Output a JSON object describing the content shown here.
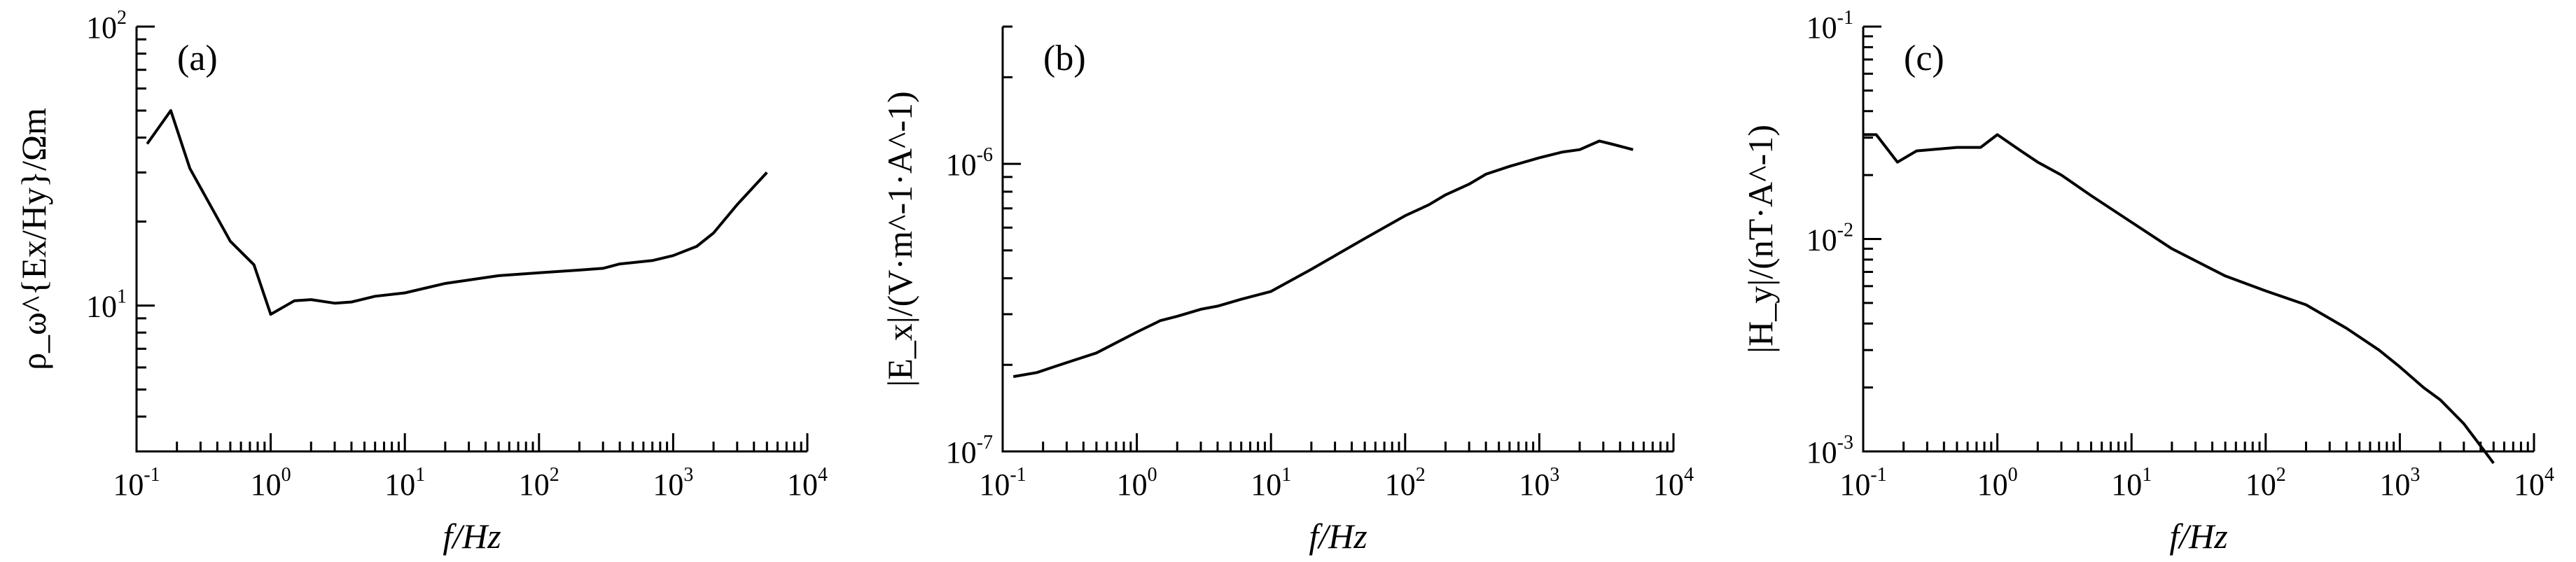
{
  "chart_data": [
    {
      "type": "line",
      "panel_label": "(a)",
      "xscale": "log",
      "yscale": "log",
      "xlim": [
        0.1,
        10000
      ],
      "ylim": [
        3,
        100
      ],
      "xlabel": "f/Hz",
      "ylabel": "ρ_ω^{Ex/Hy}/Ωm",
      "xticks": [
        "10^-1",
        "10^0",
        "10^1",
        "10^2",
        "10^3",
        "10^4"
      ],
      "yticks": [
        "10^1",
        "10^2"
      ],
      "series": [
        {
          "x": [
            0.12,
            0.18,
            0.25,
            0.5,
            0.75,
            1.0,
            1.5,
            2.0,
            3.0,
            4.0,
            6.0,
            10,
            20,
            50,
            100,
            200,
            300,
            400,
            700,
            1000,
            1500,
            2000,
            3000,
            5000
          ],
          "y": [
            38,
            50,
            31,
            17,
            14,
            9.3,
            10.4,
            10.5,
            10.2,
            10.3,
            10.8,
            11.1,
            12.0,
            12.8,
            13.1,
            13.4,
            13.6,
            14.1,
            14.5,
            15.1,
            16.3,
            18.2,
            23,
            30
          ]
        }
      ]
    },
    {
      "type": "line",
      "panel_label": "(b)",
      "xscale": "log",
      "yscale": "log",
      "xlim": [
        0.1,
        10000
      ],
      "ylim": [
        1e-07,
        3e-06
      ],
      "xlabel": "f/Hz",
      "ylabel": "|E_x|/(V·m^-1·A^-1)",
      "xticks": [
        "10^-1",
        "10^0",
        "10^1",
        "10^2",
        "10^3",
        "10^4"
      ],
      "yticks": [
        "10^-7",
        "10^-6"
      ],
      "series": [
        {
          "x": [
            0.12,
            0.18,
            0.25,
            0.5,
            1.0,
            1.5,
            2.0,
            3.0,
            4.0,
            6.0,
            10,
            20,
            50,
            100,
            150,
            200,
            300,
            400,
            600,
            1000,
            1500,
            2000,
            2800,
            3500,
            5000
          ],
          "y": [
            1.82e-07,
            1.88e-07,
            1.98e-07,
            2.2e-07,
            2.6e-07,
            2.85e-07,
            2.95e-07,
            3.12e-07,
            3.2e-07,
            3.38e-07,
            3.6e-07,
            4.3e-07,
            5.5e-07,
            6.6e-07,
            7.2e-07,
            7.8e-07,
            8.5e-07,
            9.2e-07,
            9.8e-07,
            1.05e-06,
            1.1e-06,
            1.12e-06,
            1.2e-06,
            1.17e-06,
            1.12e-06
          ]
        }
      ]
    },
    {
      "type": "line",
      "panel_label": "(c)",
      "xscale": "log",
      "yscale": "log",
      "xlim": [
        0.1,
        10000
      ],
      "ylim": [
        0.001,
        0.1
      ],
      "xlabel": "f/Hz",
      "ylabel": "|H_y|/(nT·A^-1)",
      "xticks": [
        "10^-1",
        "10^0",
        "10^1",
        "10^2",
        "10^3",
        "10^4"
      ],
      "yticks": [
        "10^-3",
        "10^-2",
        "10^-1"
      ],
      "series": [
        {
          "x": [
            0.1,
            0.125,
            0.18,
            0.25,
            0.5,
            0.75,
            1.0,
            1.5,
            2.0,
            3.0,
            5.0,
            10,
            20,
            50,
            100,
            200,
            400,
            700,
            1000,
            1500,
            2000,
            3000,
            5000
          ],
          "y": [
            0.031,
            0.031,
            0.023,
            0.026,
            0.027,
            0.027,
            0.031,
            0.026,
            0.023,
            0.02,
            0.016,
            0.012,
            0.009,
            0.0067,
            0.0057,
            0.0049,
            0.0038,
            0.003,
            0.0025,
            0.002,
            0.00175,
            0.00135,
            0.00088
          ]
        }
      ]
    }
  ]
}
